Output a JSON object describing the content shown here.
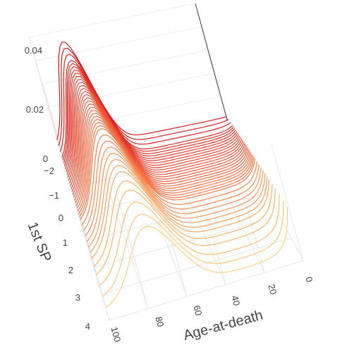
{
  "chart_data": {
    "type": "line",
    "view": "3d-surface-ribbons",
    "xlabel": "Age-at-death",
    "ylabel": "1st SP",
    "zlabel": "",
    "x_ticks": [
      "0",
      "20",
      "40",
      "60",
      "80",
      "100"
    ],
    "y_ticks": [
      "−2",
      "−1",
      "0",
      "1",
      "2",
      "3",
      "4"
    ],
    "z_ticks": [
      "0",
      "0.02",
      "0.04"
    ],
    "xlim": [
      0,
      100
    ],
    "ylim": [
      -2.3,
      4
    ],
    "zlim": [
      0,
      0.05
    ],
    "colorscale": [
      "#3b4cc0",
      "#4a90c2",
      "#66c2a5",
      "#abdda4",
      "#e6f598",
      "#fee08b",
      "#fdae61",
      "#f46d43",
      "#d7191c"
    ],
    "series_model": {
      "description": "family of age-at-death densities indexed by 1st SP score",
      "sp_values": [
        -2.2,
        -2.0,
        -1.8,
        -1.6,
        -1.5,
        -1.4,
        -1.3,
        -1.2,
        -1.1,
        -1.0,
        -0.9,
        -0.8,
        -0.7,
        -0.6,
        -0.5,
        -0.4,
        -0.3,
        -0.2,
        -0.1,
        0.0,
        0.1,
        0.2,
        0.3,
        0.4,
        0.5,
        0.6,
        0.8,
        1.0,
        1.2,
        1.4,
        1.6,
        1.8,
        2.0,
        2.3,
        2.6,
        3.0,
        3.4,
        3.8
      ],
      "peak_age_at_sp_minus2": 81,
      "peak_age_at_sp_4": 70,
      "peak_density_at_sp_minus2": 0.044,
      "peak_density_at_sp_4": 0.028,
      "early_age_density_at_sp_minus2": 0.001,
      "early_age_density_at_sp_4": 0.02
    }
  }
}
